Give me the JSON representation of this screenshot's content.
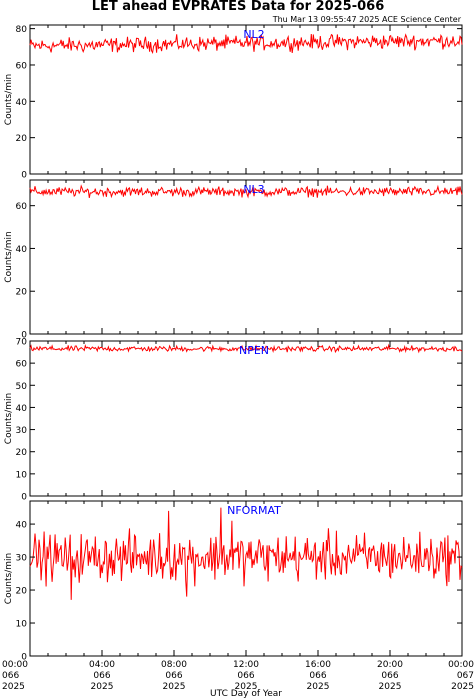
{
  "title": "LET ahead EVPRATES Data for 2025-066",
  "subtitle": "Thu Mar 13 09:55:47 2025 ACE Science Center",
  "xlabel": "UTC Day of Year",
  "colors": {
    "line": "#ff0000",
    "panel_label": "#0000ff",
    "axes": "#000000"
  },
  "chart_data": [
    {
      "type": "line",
      "series": [
        {
          "name": "NL2",
          "mean": 72,
          "noise": 4,
          "trend": 1.5,
          "spikes": []
        }
      ],
      "ylabel": "Counts/min",
      "ylim": [
        0,
        82
      ],
      "yticks": [
        0,
        20,
        40,
        60,
        80
      ],
      "xlim": [
        0,
        24
      ],
      "xticks": [
        0,
        4,
        8,
        12,
        16,
        20,
        24
      ]
    },
    {
      "type": "line",
      "series": [
        {
          "name": "NL3",
          "mean": 66.5,
          "noise": 2.2,
          "trend": 0,
          "spikes": []
        }
      ],
      "ylabel": "Counts/min",
      "ylim": [
        0,
        72
      ],
      "yticks": [
        0,
        20,
        40,
        60
      ],
      "xlim": [
        0,
        24
      ],
      "xticks": [
        0,
        4,
        8,
        12,
        16,
        20,
        24
      ]
    },
    {
      "type": "line",
      "series": [
        {
          "name": "NPEN",
          "mean": 66.5,
          "noise": 1.2,
          "trend": 0,
          "spikes": []
        }
      ],
      "ylabel": "Counts/min",
      "ylim": [
        0,
        70
      ],
      "yticks": [
        0,
        10,
        20,
        30,
        40,
        50,
        60,
        70
      ],
      "xlim": [
        0,
        24
      ],
      "xticks": [
        0,
        4,
        8,
        12,
        16,
        20,
        24
      ]
    },
    {
      "type": "line",
      "series": [
        {
          "name": "NFORMAT",
          "mean": 30,
          "noise": 7,
          "trend": 0,
          "spikes": [
            [
              2.3,
              17
            ],
            [
              7.7,
              44
            ],
            [
              8.7,
              18
            ],
            [
              10.6,
              45
            ],
            [
              11.2,
              41
            ]
          ]
        }
      ],
      "ylabel": "Counts/min",
      "ylim": [
        0,
        47
      ],
      "yticks": [
        0,
        10,
        20,
        30,
        40
      ],
      "xlim": [
        0,
        24
      ],
      "xticks": [
        0,
        4,
        8,
        12,
        16,
        20,
        24
      ]
    }
  ],
  "x_tick_labels": [
    [
      "00:00",
      "066",
      "2025"
    ],
    [
      "04:00",
      "066",
      "2025"
    ],
    [
      "08:00",
      "066",
      "2025"
    ],
    [
      "12:00",
      "066",
      "2025"
    ],
    [
      "16:00",
      "066",
      "2025"
    ],
    [
      "20:00",
      "066",
      "2025"
    ],
    [
      "00:00",
      "067",
      "2025"
    ]
  ]
}
